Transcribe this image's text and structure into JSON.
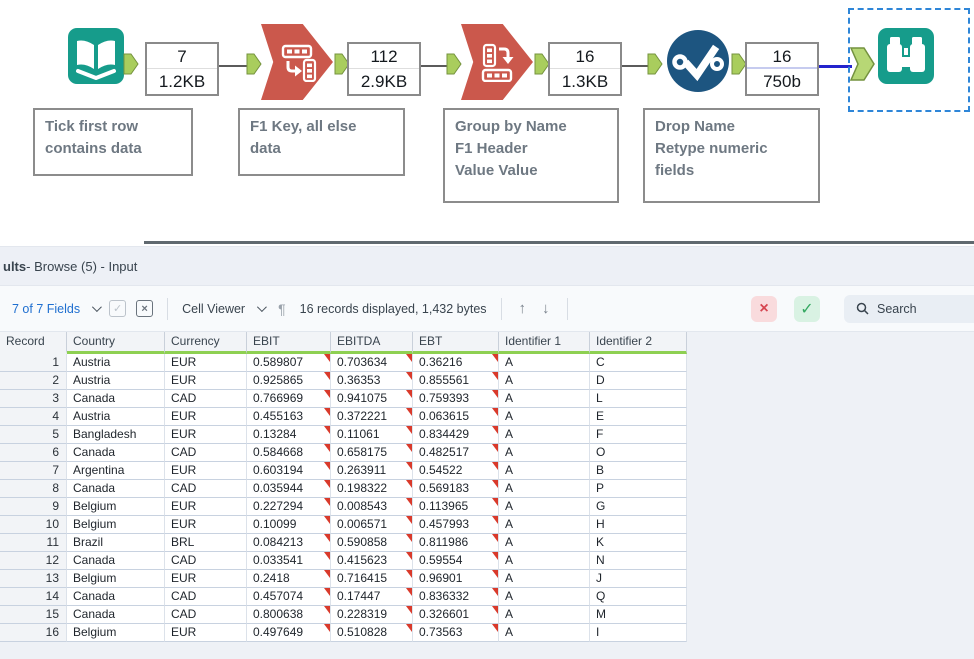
{
  "colors": {
    "tool_teal": "#169C8B",
    "tool_red": "#CB584C",
    "tool_blue": "#1D5580",
    "anchor_green": "#A9CD5D",
    "selection_blue": "#2E86D8",
    "quality_flag_red": "#D93A2B",
    "header_underline_green": "#8ED052"
  },
  "icons": {
    "pilcrow": "¶",
    "up_arrow": "↑",
    "down_arrow": "↓",
    "close": "×",
    "check": "✓",
    "checkbox_check": "✓",
    "checkbox_x": "×"
  },
  "workflow": {
    "tools": [
      {
        "type": "input-data"
      },
      {
        "type": "transpose"
      },
      {
        "type": "cross-tab"
      },
      {
        "type": "select"
      },
      {
        "type": "browse",
        "selected": true
      }
    ],
    "connections": [
      {
        "records": "7",
        "size": "1.2KB"
      },
      {
        "records": "112",
        "size": "2.9KB"
      },
      {
        "records": "16",
        "size": "1.3KB"
      },
      {
        "records": "16",
        "size": "750b"
      }
    ],
    "annotations": [
      "Tick first row\ncontains data",
      "F1 Key, all else\ndata",
      "Group by Name\nF1 Header\nValue Value",
      "Drop Name\nRetype numeric\nfields"
    ]
  },
  "results": {
    "title_bold": "ults",
    "title_rest": " - Browse (5) - Input",
    "toolbar": {
      "fields_label": "7 of 7 Fields",
      "cell_viewer_label": "Cell Viewer",
      "records_info": "16 records displayed, 1,432 bytes",
      "search_label": "Search"
    },
    "table": {
      "columns": [
        "Record",
        "Country",
        "Currency",
        "EBIT",
        "EBITDA",
        "EBT",
        "Identifier 1",
        "Identifier 2"
      ],
      "rows": [
        [
          "1",
          "Austria",
          "EUR",
          "0.589807",
          "0.703634",
          "0.36216",
          "A",
          "C"
        ],
        [
          "2",
          "Austria",
          "EUR",
          "0.925865",
          "0.36353",
          "0.855561",
          "A",
          "D"
        ],
        [
          "3",
          "Canada",
          "CAD",
          "0.766969",
          "0.941075",
          "0.759393",
          "A",
          "L"
        ],
        [
          "4",
          "Austria",
          "EUR",
          "0.455163",
          "0.372221",
          "0.063615",
          "A",
          "E"
        ],
        [
          "5",
          "Bangladesh",
          "EUR",
          "0.13284",
          "0.11061",
          "0.834429",
          "A",
          "F"
        ],
        [
          "6",
          "Canada",
          "CAD",
          "0.584668",
          "0.658175",
          "0.482517",
          "A",
          "O"
        ],
        [
          "7",
          "Argentina",
          "EUR",
          "0.603194",
          "0.263911",
          "0.54522",
          "A",
          "B"
        ],
        [
          "8",
          "Canada",
          "CAD",
          "0.035944",
          "0.198322",
          "0.569183",
          "A",
          "P"
        ],
        [
          "9",
          "Belgium",
          "EUR",
          "0.227294",
          "0.008543",
          "0.113965",
          "A",
          "G"
        ],
        [
          "10",
          "Belgium",
          "EUR",
          "0.10099",
          "0.006571",
          "0.457993",
          "A",
          "H"
        ],
        [
          "11",
          "Brazil",
          "BRL",
          "0.084213",
          "0.590858",
          "0.811986",
          "A",
          "K"
        ],
        [
          "12",
          "Canada",
          "CAD",
          "0.033541",
          "0.415623",
          "0.59554",
          "A",
          "N"
        ],
        [
          "13",
          "Belgium",
          "EUR",
          "0.2418",
          "0.716415",
          "0.96901",
          "A",
          "J"
        ],
        [
          "14",
          "Canada",
          "CAD",
          "0.457074",
          "0.17447",
          "0.836332",
          "A",
          "Q"
        ],
        [
          "15",
          "Canada",
          "CAD",
          "0.800638",
          "0.228319",
          "0.326601",
          "A",
          "M"
        ],
        [
          "16",
          "Belgium",
          "EUR",
          "0.497649",
          "0.510828",
          "0.73563",
          "A",
          "I"
        ]
      ],
      "flag_columns": [
        3,
        4,
        5
      ]
    }
  }
}
